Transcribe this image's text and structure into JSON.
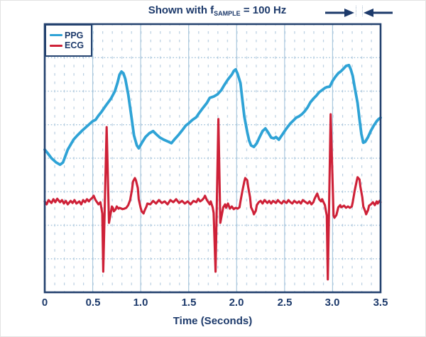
{
  "title": {
    "prefix": "Shown with f",
    "subscript": "SAMPLE",
    "suffix": " = 100 Hz"
  },
  "legend": {
    "items": [
      {
        "label": "PPG",
        "color": "#2fa3d6"
      },
      {
        "label": "ECG",
        "color": "#ce2138"
      }
    ]
  },
  "axis": {
    "ticks": [
      "0",
      "0.5",
      "1.0",
      "1.5",
      "2.0",
      "2.5",
      "3.0",
      "3.5"
    ],
    "xlabel": "Time (Seconds)"
  },
  "colors": {
    "text_navy": "#1d3a6b",
    "plot_border": "#24426f",
    "grid_major": "#a9c7dd",
    "grid_minor": "#b7cde0",
    "ppg": "#2fa3d6",
    "ecg": "#ce2138",
    "background": "#ffffff"
  },
  "chart_data": {
    "type": "line",
    "title": "Shown with fSAMPLE = 100 Hz",
    "xlabel": "Time (Seconds)",
    "ylabel": "",
    "x_range": [
      0,
      3.5
    ],
    "x_major_step": 0.5,
    "x_minor_step": 0.1,
    "y_major_divisions": 8,
    "y_minor_per_major": 4,
    "grid": "on",
    "legend_position": "top-left",
    "y_units": "relative amplitude, percent of plot height (axis unlabeled in figure)",
    "annotations": [
      "sample-interval dimension arrows at top right"
    ],
    "series": [
      {
        "name": "PPG",
        "color": "#2fa3d6",
        "points": [
          [
            0,
            53.2
          ],
          [
            0.03,
            51.9
          ],
          [
            0.07,
            50
          ],
          [
            0.12,
            48.4
          ],
          [
            0.16,
            47.6
          ],
          [
            0.19,
            48.4
          ],
          [
            0.24,
            53.2
          ],
          [
            0.3,
            56.9
          ],
          [
            0.34,
            58.5
          ],
          [
            0.39,
            60.3
          ],
          [
            0.44,
            61.9
          ],
          [
            0.48,
            63.2
          ],
          [
            0.5,
            63.8
          ],
          [
            0.53,
            64.3
          ],
          [
            0.56,
            65.9
          ],
          [
            0.59,
            67.2
          ],
          [
            0.64,
            69.8
          ],
          [
            0.69,
            72.2
          ],
          [
            0.73,
            74.9
          ],
          [
            0.76,
            78.3
          ],
          [
            0.78,
            81.2
          ],
          [
            0.8,
            82.3
          ],
          [
            0.82,
            81.7
          ],
          [
            0.84,
            79.6
          ],
          [
            0.87,
            73.8
          ],
          [
            0.9,
            66.4
          ],
          [
            0.93,
            58.5
          ],
          [
            0.96,
            54.8
          ],
          [
            0.98,
            53.7
          ],
          [
            1.01,
            55.6
          ],
          [
            1.05,
            57.9
          ],
          [
            1.09,
            59.3
          ],
          [
            1.13,
            60.1
          ],
          [
            1.16,
            59
          ],
          [
            1.2,
            57.7
          ],
          [
            1.24,
            56.9
          ],
          [
            1.28,
            56.3
          ],
          [
            1.32,
            55.6
          ],
          [
            1.35,
            56.9
          ],
          [
            1.39,
            58.5
          ],
          [
            1.43,
            60.3
          ],
          [
            1.47,
            62.2
          ],
          [
            1.5,
            63
          ],
          [
            1.54,
            64.3
          ],
          [
            1.58,
            65.3
          ],
          [
            1.61,
            66.9
          ],
          [
            1.65,
            68.8
          ],
          [
            1.69,
            70.6
          ],
          [
            1.72,
            72.5
          ],
          [
            1.76,
            73
          ],
          [
            1.8,
            73.8
          ],
          [
            1.84,
            75.4
          ],
          [
            1.87,
            77.2
          ],
          [
            1.91,
            79.4
          ],
          [
            1.95,
            81.2
          ],
          [
            1.97,
            82.5
          ],
          [
            1.99,
            83.1
          ],
          [
            2.01,
            81.5
          ],
          [
            2.04,
            78
          ],
          [
            2.06,
            71.7
          ],
          [
            2.08,
            65.6
          ],
          [
            2.11,
            59.8
          ],
          [
            2.13,
            56.6
          ],
          [
            2.15,
            54.8
          ],
          [
            2.18,
            54.2
          ],
          [
            2.21,
            55.6
          ],
          [
            2.24,
            57.9
          ],
          [
            2.27,
            60.1
          ],
          [
            2.3,
            61.1
          ],
          [
            2.33,
            59.5
          ],
          [
            2.36,
            57.7
          ],
          [
            2.39,
            57.4
          ],
          [
            2.41,
            57.9
          ],
          [
            2.44,
            56.9
          ],
          [
            2.47,
            58.5
          ],
          [
            2.5,
            60.1
          ],
          [
            2.53,
            61.6
          ],
          [
            2.56,
            63
          ],
          [
            2.59,
            64
          ],
          [
            2.62,
            65.1
          ],
          [
            2.65,
            65.6
          ],
          [
            2.68,
            66.4
          ],
          [
            2.71,
            67.5
          ],
          [
            2.74,
            69
          ],
          [
            2.77,
            70.9
          ],
          [
            2.8,
            72.2
          ],
          [
            2.83,
            73.3
          ],
          [
            2.86,
            74.6
          ],
          [
            2.89,
            75.4
          ],
          [
            2.92,
            76.2
          ],
          [
            2.94,
            76.5
          ],
          [
            2.97,
            76.7
          ],
          [
            3,
            78.8
          ],
          [
            3.03,
            80.4
          ],
          [
            3.06,
            81.7
          ],
          [
            3.09,
            82.5
          ],
          [
            3.12,
            83.6
          ],
          [
            3.14,
            84.4
          ],
          [
            3.17,
            84.7
          ],
          [
            3.19,
            83.1
          ],
          [
            3.21,
            80.7
          ],
          [
            3.23,
            76.5
          ],
          [
            3.26,
            70.6
          ],
          [
            3.28,
            64.6
          ],
          [
            3.3,
            59
          ],
          [
            3.32,
            55.8
          ],
          [
            3.34,
            56.1
          ],
          [
            3.37,
            57.9
          ],
          [
            3.4,
            60.3
          ],
          [
            3.43,
            62.2
          ],
          [
            3.46,
            63.8
          ],
          [
            3.48,
            64.6
          ],
          [
            3.5,
            65.1
          ]
        ]
      },
      {
        "name": "ECG",
        "color": "#ce2138",
        "points": [
          [
            0,
            33.9
          ],
          [
            0.02,
            32.8
          ],
          [
            0.04,
            34.4
          ],
          [
            0.07,
            33.3
          ],
          [
            0.09,
            34.7
          ],
          [
            0.11,
            33.6
          ],
          [
            0.13,
            34.9
          ],
          [
            0.16,
            33.6
          ],
          [
            0.18,
            34.4
          ],
          [
            0.2,
            33.1
          ],
          [
            0.22,
            34.1
          ],
          [
            0.24,
            32.8
          ],
          [
            0.27,
            34.1
          ],
          [
            0.29,
            33.3
          ],
          [
            0.31,
            34.4
          ],
          [
            0.33,
            33.1
          ],
          [
            0.36,
            33.9
          ],
          [
            0.38,
            32.8
          ],
          [
            0.4,
            34.4
          ],
          [
            0.42,
            33.6
          ],
          [
            0.44,
            34.7
          ],
          [
            0.46,
            33.9
          ],
          [
            0.47,
            34.4
          ],
          [
            0.5,
            35.4
          ],
          [
            0.51,
            36
          ],
          [
            0.53,
            34.4
          ],
          [
            0.56,
            32.8
          ],
          [
            0.58,
            33.6
          ],
          [
            0.59,
            31.5
          ],
          [
            0.6,
            29.4
          ],
          [
            0.61,
            7.7
          ],
          [
            0.645,
            61.6
          ],
          [
            0.67,
            25.9
          ],
          [
            0.7,
            32
          ],
          [
            0.71,
            31.5
          ],
          [
            0.72,
            30.2
          ],
          [
            0.74,
            31
          ],
          [
            0.75,
            32
          ],
          [
            0.77,
            31.2
          ],
          [
            0.78,
            31.5
          ],
          [
            0.81,
            31
          ],
          [
            0.83,
            31.2
          ],
          [
            0.85,
            31.5
          ],
          [
            0.87,
            32.5
          ],
          [
            0.89,
            34.4
          ],
          [
            0.91,
            38.4
          ],
          [
            0.92,
            41.3
          ],
          [
            0.94,
            42.6
          ],
          [
            0.95,
            41.8
          ],
          [
            0.97,
            38.9
          ],
          [
            0.98,
            34.7
          ],
          [
            1,
            31.5
          ],
          [
            1.01,
            30.2
          ],
          [
            1.03,
            29.4
          ],
          [
            1.04,
            30.4
          ],
          [
            1.06,
            32
          ],
          [
            1.07,
            33.1
          ],
          [
            1.1,
            32.8
          ],
          [
            1.13,
            34.1
          ],
          [
            1.16,
            33.1
          ],
          [
            1.19,
            34.4
          ],
          [
            1.22,
            33.3
          ],
          [
            1.25,
            33.9
          ],
          [
            1.28,
            32.8
          ],
          [
            1.31,
            34.4
          ],
          [
            1.34,
            33.6
          ],
          [
            1.37,
            34.7
          ],
          [
            1.4,
            33.3
          ],
          [
            1.43,
            34.1
          ],
          [
            1.46,
            33.1
          ],
          [
            1.49,
            33.9
          ],
          [
            1.52,
            32.8
          ],
          [
            1.55,
            34.1
          ],
          [
            1.58,
            33.6
          ],
          [
            1.6,
            34.9
          ],
          [
            1.62,
            33.9
          ],
          [
            1.64,
            34.4
          ],
          [
            1.66,
            35.2
          ],
          [
            1.67,
            36
          ],
          [
            1.69,
            34.4
          ],
          [
            1.72,
            32.8
          ],
          [
            1.73,
            33.9
          ],
          [
            1.75,
            31.7
          ],
          [
            1.76,
            29.6
          ],
          [
            1.78,
            7.7
          ],
          [
            1.81,
            64.6
          ],
          [
            1.83,
            25.9
          ],
          [
            1.86,
            31.7
          ],
          [
            1.88,
            32.8
          ],
          [
            1.89,
            31.5
          ],
          [
            1.91,
            33.1
          ],
          [
            1.93,
            31.2
          ],
          [
            1.95,
            32
          ],
          [
            1.97,
            31
          ],
          [
            1.99,
            31.5
          ],
          [
            2.01,
            31.2
          ],
          [
            2.03,
            31.7
          ],
          [
            2.04,
            33.9
          ],
          [
            2.06,
            37.8
          ],
          [
            2.08,
            41.3
          ],
          [
            2.09,
            42.6
          ],
          [
            2.11,
            41.8
          ],
          [
            2.12,
            39.4
          ],
          [
            2.14,
            35.4
          ],
          [
            2.15,
            31.7
          ],
          [
            2.17,
            30.2
          ],
          [
            2.18,
            29.1
          ],
          [
            2.2,
            30.4
          ],
          [
            2.21,
            32.5
          ],
          [
            2.23,
            33.6
          ],
          [
            2.25,
            34.1
          ],
          [
            2.27,
            33.1
          ],
          [
            2.29,
            34.4
          ],
          [
            2.32,
            33.3
          ],
          [
            2.34,
            34.1
          ],
          [
            2.36,
            33.1
          ],
          [
            2.38,
            34.1
          ],
          [
            2.41,
            33.3
          ],
          [
            2.43,
            34.4
          ],
          [
            2.45,
            33.6
          ],
          [
            2.47,
            33.1
          ],
          [
            2.49,
            34.1
          ],
          [
            2.52,
            33.3
          ],
          [
            2.54,
            34.4
          ],
          [
            2.56,
            33.6
          ],
          [
            2.58,
            33.1
          ],
          [
            2.6,
            34.1
          ],
          [
            2.63,
            33.3
          ],
          [
            2.65,
            33.9
          ],
          [
            2.67,
            33.1
          ],
          [
            2.69,
            34.4
          ],
          [
            2.72,
            33.6
          ],
          [
            2.74,
            33.1
          ],
          [
            2.76,
            33.9
          ],
          [
            2.78,
            32.8
          ],
          [
            2.8,
            33.6
          ],
          [
            2.81,
            34.7
          ],
          [
            2.83,
            36.2
          ],
          [
            2.84,
            36.8
          ],
          [
            2.86,
            34.7
          ],
          [
            2.88,
            33.9
          ],
          [
            2.89,
            34.7
          ],
          [
            2.92,
            32.5
          ],
          [
            2.93,
            30.4
          ],
          [
            2.94,
            28.6
          ],
          [
            2.95,
            4.8
          ],
          [
            2.98,
            66.4
          ],
          [
            3.01,
            28.6
          ],
          [
            3.02,
            27.8
          ],
          [
            3.04,
            28.8
          ],
          [
            3.06,
            31.7
          ],
          [
            3.08,
            32.5
          ],
          [
            3.09,
            31.7
          ],
          [
            3.12,
            32.3
          ],
          [
            3.14,
            31.5
          ],
          [
            3.16,
            32
          ],
          [
            3.18,
            31.5
          ],
          [
            3.2,
            32
          ],
          [
            3.21,
            33.6
          ],
          [
            3.23,
            37.8
          ],
          [
            3.25,
            41.3
          ],
          [
            3.26,
            42.9
          ],
          [
            3.28,
            42.1
          ],
          [
            3.29,
            39.4
          ],
          [
            3.31,
            35.4
          ],
          [
            3.32,
            32
          ],
          [
            3.34,
            30.2
          ],
          [
            3.35,
            29.1
          ],
          [
            3.37,
            30.7
          ],
          [
            3.38,
            32.3
          ],
          [
            3.4,
            32.8
          ],
          [
            3.42,
            33.6
          ],
          [
            3.44,
            32.5
          ],
          [
            3.46,
            33.9
          ],
          [
            3.47,
            33.1
          ],
          [
            3.49,
            34.1
          ],
          [
            3.5,
            33.6
          ]
        ]
      }
    ]
  }
}
